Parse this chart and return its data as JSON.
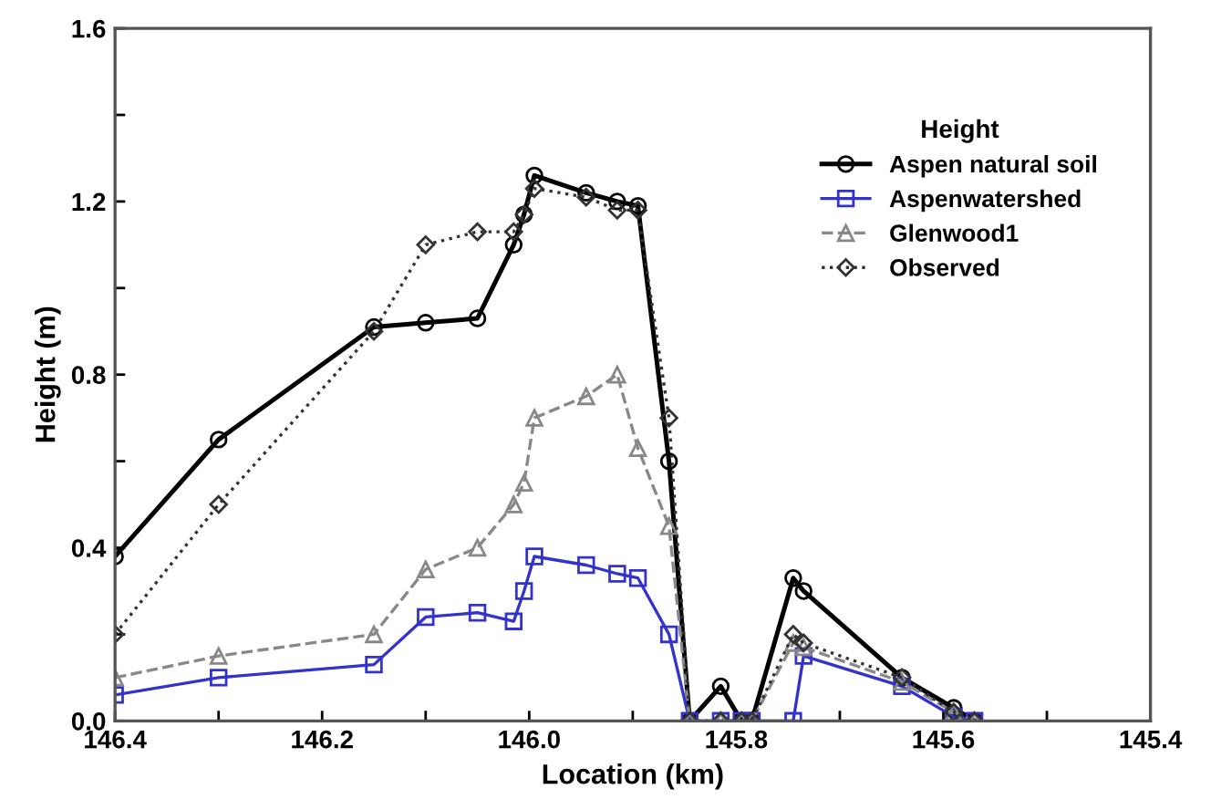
{
  "chart_data": {
    "type": "line",
    "xlabel": "Location (km)",
    "ylabel": "Height (m)",
    "legend_title": "Height",
    "legend": "top right",
    "grid": false,
    "x": [
      146.4,
      146.3,
      146.15,
      146.1,
      146.05,
      146.015,
      146.005,
      145.995,
      145.945,
      145.915,
      145.895,
      145.865,
      145.845,
      145.815,
      145.795,
      145.785,
      145.745,
      145.735,
      145.64,
      145.59,
      145.57
    ],
    "series": [
      {
        "name": "Aspen natural soil",
        "color": "#000000",
        "marker": "circle",
        "line_style": "solid",
        "values": [
          0.38,
          0.65,
          0.91,
          0.92,
          0.93,
          1.1,
          1.17,
          1.26,
          1.22,
          1.2,
          1.19,
          0.6,
          0,
          0.08,
          0,
          0,
          0.33,
          0.3,
          0.1,
          0.03,
          0
        ]
      },
      {
        "name": "Aspenwatershed",
        "color": "#3333cc",
        "marker": "square",
        "line_style": "solid",
        "values": [
          0.06,
          0.1,
          0.13,
          0.24,
          0.25,
          0.23,
          0.3,
          0.38,
          0.36,
          0.34,
          0.33,
          0.2,
          0,
          0,
          0,
          0,
          0,
          0.15,
          0.08,
          0.01,
          0
        ]
      },
      {
        "name": "Glenwood1",
        "color": "#888888",
        "marker": "triangle",
        "line_style": "dashed",
        "values": [
          0.1,
          0.15,
          0.2,
          0.35,
          0.4,
          0.5,
          0.55,
          0.7,
          0.75,
          0.8,
          0.63,
          0.45,
          0,
          0,
          0,
          0,
          0.18,
          0.17,
          0.09,
          0.02,
          0
        ]
      },
      {
        "name": "Observed",
        "color": "#333333",
        "marker": "diamond",
        "line_style": "dotted",
        "values": [
          0.2,
          0.5,
          0.9,
          1.1,
          1.13,
          1.13,
          1.17,
          1.23,
          1.21,
          1.18,
          1.18,
          0.7,
          0,
          0,
          0,
          0,
          0.2,
          0.18,
          0.1,
          0.02,
          0
        ]
      }
    ],
    "xlim": [
      146.4,
      145.4
    ],
    "xticks": [
      {
        "value": 146.4,
        "label": "146.4"
      },
      {
        "value": 146.3,
        "label": null
      },
      {
        "value": 146.2,
        "label": "146.2"
      },
      {
        "value": 146.1,
        "label": null
      },
      {
        "value": 146.0,
        "label": "146.0"
      },
      {
        "value": 145.9,
        "label": null
      },
      {
        "value": 145.8,
        "label": "145.8"
      },
      {
        "value": 145.7,
        "label": null
      },
      {
        "value": 145.6,
        "label": "145.6"
      },
      {
        "value": 145.5,
        "label": null
      },
      {
        "value": 145.4,
        "label": "145.4"
      }
    ],
    "ylim": [
      0,
      1.6
    ],
    "yticks": [
      {
        "value": 0,
        "label": "0.0"
      },
      {
        "value": 0.2,
        "label": null
      },
      {
        "value": 0.4,
        "label": "0.4"
      },
      {
        "value": 0.6,
        "label": null
      },
      {
        "value": 0.8,
        "label": "0.8"
      },
      {
        "value": 1.0,
        "label": null
      },
      {
        "value": 1.2,
        "label": "1.2"
      },
      {
        "value": 1.4,
        "label": null
      },
      {
        "value": 1.6,
        "label": "1.6"
      }
    ]
  }
}
